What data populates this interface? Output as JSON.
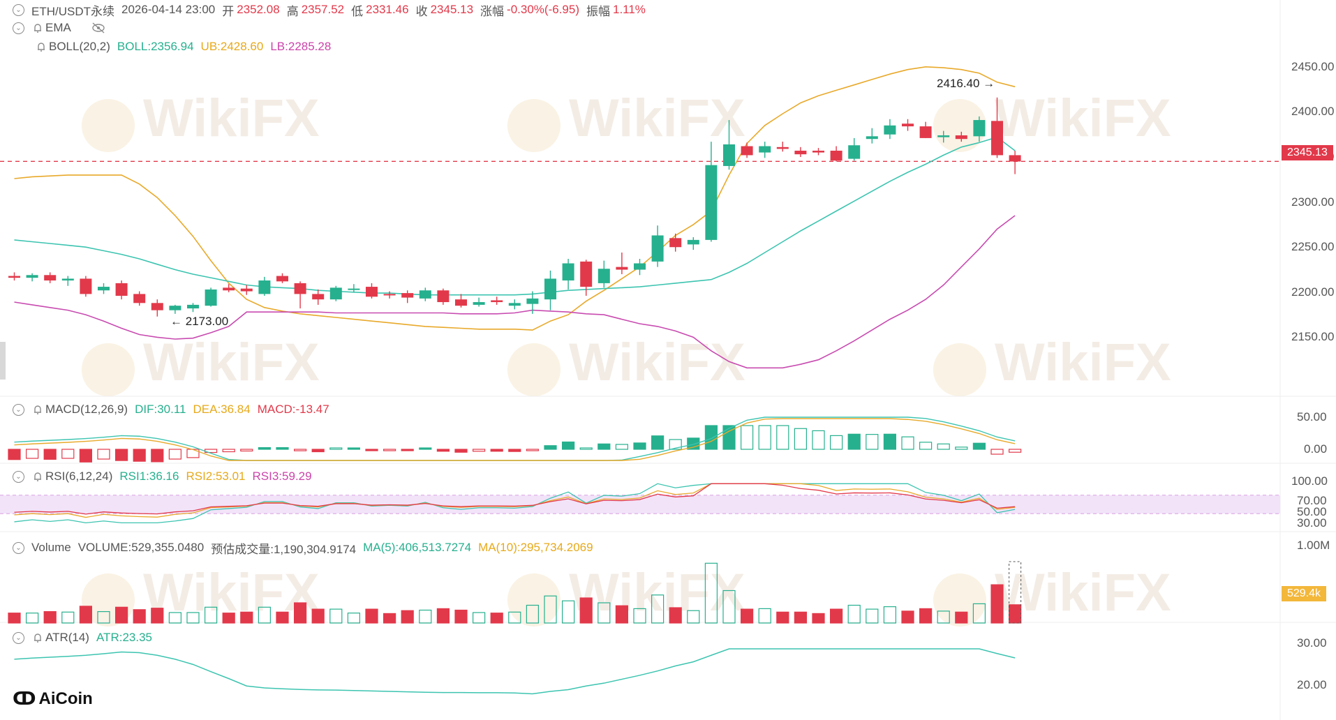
{
  "header": {
    "symbol": "ETH/USDT永续",
    "datetime": "2026-04-14 23:00",
    "open_label": "开",
    "open": "2352.08",
    "high_label": "高",
    "high": "2357.52",
    "low_label": "低",
    "low": "2331.46",
    "close_label": "收",
    "close": "2345.13",
    "change_label": "涨幅",
    "change": "-0.30%(-6.95)",
    "amplitude_label": "振幅",
    "amplitude": "1.11%"
  },
  "indicators": {
    "ema": "EMA",
    "boll": {
      "name": "BOLL(20,2)",
      "mid": "BOLL:2356.94",
      "ub": "UB:2428.60",
      "lb": "LB:2285.28"
    },
    "macd": {
      "name": "MACD(12,26,9)",
      "dif": "DIF:30.11",
      "dea": "DEA:36.84",
      "macd": "MACD:-13.47"
    },
    "rsi": {
      "name": "RSI(6,12,24)",
      "rsi1": "RSI1:36.16",
      "rsi2": "RSI2:53.01",
      "rsi3": "RSI3:59.29"
    },
    "volume": {
      "name": "Volume",
      "volume": "VOLUME:529,355.0480",
      "est": "预估成交量:1,190,304.9174",
      "ma5": "MA(5):406,513.7274",
      "ma10": "MA(10):295,734.2069"
    },
    "atr": {
      "name": "ATR(14)",
      "atr": "ATR:23.35"
    }
  },
  "axes": {
    "price_ticks": [
      "2450.00",
      "2400.00",
      "2350.00",
      "2300.00",
      "2250.00",
      "2200.00",
      "2150.00"
    ],
    "price_tag": "2345.13",
    "macd_ticks": [
      "50.00",
      "0.00"
    ],
    "rsi_ticks": [
      "100.00",
      "70.00",
      "50.00",
      "30.00"
    ],
    "vol_ticks": [
      "1.00M"
    ],
    "vol_tag": "529.4k",
    "atr_ticks": [
      "30.00",
      "20.00"
    ]
  },
  "annotations": {
    "high_label": "2416.40",
    "low_label": "2173.00"
  },
  "watermark": "WikiFX",
  "logo": "AiCoin",
  "colors": {
    "up": "#26b08e",
    "down": "#e2394a",
    "boll_mid": "#3cc4b0",
    "boll_ub": "#e8a92a",
    "boll_lb": "#c84bb0"
  },
  "chart_data": {
    "type": "candlestick",
    "ylim": [
      2100,
      2470
    ],
    "candles": [
      [
        2218,
        2222,
        2213,
        2216
      ],
      [
        2216,
        2221,
        2212,
        2219
      ],
      [
        2219,
        2222,
        2210,
        2213
      ],
      [
        2213,
        2218,
        2207,
        2215
      ],
      [
        2215,
        2218,
        2195,
        2198
      ],
      [
        2202,
        2210,
        2198,
        2206
      ],
      [
        2210,
        2213,
        2192,
        2196
      ],
      [
        2198,
        2201,
        2185,
        2188
      ],
      [
        2188,
        2192,
        2173,
        2180
      ],
      [
        2180,
        2186,
        2176,
        2185
      ],
      [
        2182,
        2188,
        2178,
        2186
      ],
      [
        2185,
        2205,
        2184,
        2203
      ],
      [
        2205,
        2209,
        2200,
        2202
      ],
      [
        2204,
        2208,
        2197,
        2201
      ],
      [
        2198,
        2217,
        2196,
        2213
      ],
      [
        2218,
        2221,
        2210,
        2212
      ],
      [
        2210,
        2212,
        2182,
        2198
      ],
      [
        2198,
        2203,
        2186,
        2192
      ],
      [
        2192,
        2207,
        2190,
        2205
      ],
      [
        2203,
        2209,
        2200,
        2204
      ],
      [
        2206,
        2210,
        2193,
        2195
      ],
      [
        2198,
        2201,
        2193,
        2197
      ],
      [
        2199,
        2202,
        2188,
        2194
      ],
      [
        2193,
        2205,
        2190,
        2202
      ],
      [
        2202,
        2204,
        2186,
        2189
      ],
      [
        2192,
        2198,
        2183,
        2185
      ],
      [
        2186,
        2194,
        2184,
        2189
      ],
      [
        2191,
        2195,
        2186,
        2189
      ],
      [
        2185,
        2192,
        2181,
        2188
      ],
      [
        2187,
        2201,
        2176,
        2193
      ],
      [
        2192,
        2224,
        2180,
        2215
      ],
      [
        2213,
        2237,
        2203,
        2232
      ],
      [
        2234,
        2236,
        2196,
        2206
      ],
      [
        2210,
        2235,
        2205,
        2226
      ],
      [
        2228,
        2244,
        2220,
        2225
      ],
      [
        2225,
        2237,
        2219,
        2232
      ],
      [
        2234,
        2274,
        2228,
        2263
      ],
      [
        2260,
        2265,
        2245,
        2250
      ],
      [
        2253,
        2261,
        2247,
        2258
      ],
      [
        2258,
        2367,
        2256,
        2341
      ],
      [
        2340,
        2391,
        2336,
        2364
      ],
      [
        2362,
        2366,
        2349,
        2352
      ],
      [
        2355,
        2367,
        2349,
        2362
      ],
      [
        2361,
        2367,
        2356,
        2359
      ],
      [
        2357,
        2361,
        2350,
        2353
      ],
      [
        2357,
        2360,
        2352,
        2355
      ],
      [
        2357,
        2362,
        2345,
        2346
      ],
      [
        2348,
        2371,
        2346,
        2363
      ],
      [
        2370,
        2382,
        2365,
        2373
      ],
      [
        2375,
        2392,
        2370,
        2385
      ],
      [
        2387,
        2392,
        2379,
        2384
      ],
      [
        2384,
        2389,
        2371,
        2371
      ],
      [
        2372,
        2379,
        2366,
        2374
      ],
      [
        2374,
        2378,
        2367,
        2370
      ],
      [
        2373,
        2395,
        2367,
        2391
      ],
      [
        2390,
        2416,
        2349,
        2352
      ],
      [
        2352,
        2357,
        2331,
        2345
      ]
    ],
    "boll_ub": [
      2326,
      2328,
      2329,
      2330,
      2330,
      2330,
      2330,
      2320,
      2305,
      2285,
      2262,
      2235,
      2210,
      2192,
      2183,
      2179,
      2176,
      2174,
      2172,
      2170,
      2168,
      2166,
      2164,
      2162,
      2161,
      2160,
      2159,
      2159,
      2159,
      2158,
      2168,
      2175,
      2190,
      2202,
      2215,
      2228,
      2245,
      2263,
      2275,
      2290,
      2330,
      2365,
      2385,
      2398,
      2410,
      2418,
      2424,
      2430,
      2436,
      2442,
      2447,
      2450,
      2449,
      2447,
      2443,
      2433,
      2428
    ],
    "boll_mid": [
      2258,
      2256,
      2254,
      2252,
      2250,
      2246,
      2242,
      2237,
      2231,
      2225,
      2220,
      2216,
      2212,
      2208,
      2206,
      2205,
      2204,
      2202,
      2201,
      2200,
      2199,
      2199,
      2198,
      2197,
      2197,
      2197,
      2197,
      2197,
      2197,
      2198,
      2200,
      2202,
      2203,
      2204,
      2205,
      2206,
      2208,
      2210,
      2212,
      2214,
      2222,
      2232,
      2244,
      2256,
      2268,
      2279,
      2290,
      2301,
      2312,
      2323,
      2333,
      2342,
      2352,
      2361,
      2366,
      2372,
      2357
    ],
    "boll_lb": [
      2189,
      2186,
      2183,
      2180,
      2175,
      2168,
      2160,
      2153,
      2150,
      2148,
      2149,
      2155,
      2162,
      2178,
      2178,
      2178,
      2178,
      2178,
      2177,
      2177,
      2177,
      2177,
      2177,
      2177,
      2177,
      2176,
      2176,
      2176,
      2177,
      2180,
      2179,
      2178,
      2176,
      2175,
      2170,
      2165,
      2162,
      2157,
      2150,
      2135,
      2123,
      2116,
      2116,
      2116,
      2120,
      2125,
      2135,
      2146,
      2158,
      2170,
      2180,
      2192,
      2208,
      2228,
      2248,
      2270,
      2285
    ]
  }
}
